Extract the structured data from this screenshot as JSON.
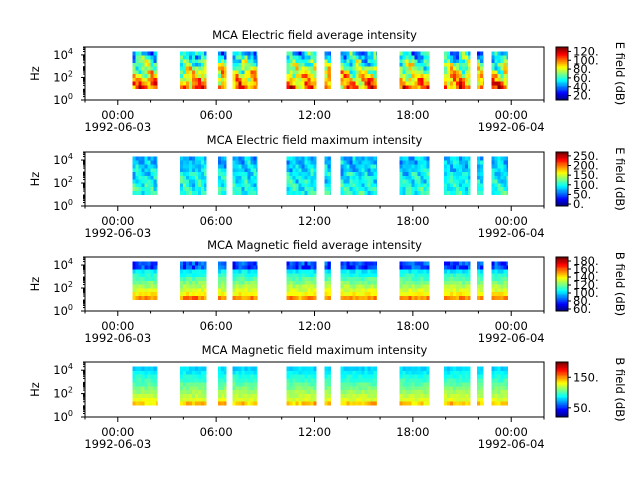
{
  "chart_data": [
    {
      "type": "heatmap",
      "title": "MCA  Electric field average intensity",
      "ylabel": "Hz",
      "colorbar_label": "E field (dB)",
      "colorbar_ticks": [
        "20.",
        "40.",
        "60.",
        "80.",
        "100.",
        "120."
      ],
      "colorbar_range": [
        10,
        130
      ],
      "y_ticks": [
        {
          "base": "10",
          "exp": "0"
        },
        {
          "base": "10",
          "exp": "2"
        },
        {
          "base": "10",
          "exp": "4"
        }
      ],
      "x_ticks": [
        {
          "time": "00:00",
          "date": "1992-06-03"
        },
        {
          "time": "06:00",
          "date": ""
        },
        {
          "time": "12:00",
          "date": ""
        },
        {
          "time": "18:00",
          "date": ""
        },
        {
          "time": "00:00",
          "date": "1992-06-04"
        }
      ],
      "x_range_hours": [
        -2,
        26
      ],
      "y_range_log10": [
        0,
        4.7
      ],
      "data_coverage_log10_hz": [
        1,
        4.3
      ],
      "profile": "e_avg"
    },
    {
      "type": "heatmap",
      "title": "MCA  Electric field maximum intensity",
      "ylabel": "Hz",
      "colorbar_label": "E field (dB)",
      "colorbar_ticks": [
        "0.",
        "50.",
        "100.",
        "150.",
        "200.",
        "250."
      ],
      "colorbar_range": [
        -10,
        270
      ],
      "y_ticks": [
        {
          "base": "10",
          "exp": "0"
        },
        {
          "base": "10",
          "exp": "2"
        },
        {
          "base": "10",
          "exp": "4"
        }
      ],
      "x_ticks": [
        {
          "time": "00:00",
          "date": "1992-06-03"
        },
        {
          "time": "06:00",
          "date": ""
        },
        {
          "time": "12:00",
          "date": ""
        },
        {
          "time": "18:00",
          "date": ""
        },
        {
          "time": "00:00",
          "date": "1992-06-04"
        }
      ],
      "x_range_hours": [
        -2,
        26
      ],
      "y_range_log10": [
        0,
        4.7
      ],
      "data_coverage_log10_hz": [
        1,
        4.3
      ],
      "profile": "e_max"
    },
    {
      "type": "heatmap",
      "title": "MCA  Magnetic field average intensity",
      "ylabel": "Hz",
      "colorbar_label": "B field (dB)",
      "colorbar_ticks": [
        "60.",
        "80.",
        "100.",
        "120.",
        "140.",
        "160.",
        "180."
      ],
      "colorbar_range": [
        55,
        190
      ],
      "y_ticks": [
        {
          "base": "10",
          "exp": "0"
        },
        {
          "base": "10",
          "exp": "2"
        },
        {
          "base": "10",
          "exp": "4"
        }
      ],
      "x_ticks": [
        {
          "time": "00:00",
          "date": "1992-06-03"
        },
        {
          "time": "06:00",
          "date": ""
        },
        {
          "time": "12:00",
          "date": ""
        },
        {
          "time": "18:00",
          "date": ""
        },
        {
          "time": "00:00",
          "date": "1992-06-04"
        }
      ],
      "x_range_hours": [
        -2,
        26
      ],
      "y_range_log10": [
        0,
        4.7
      ],
      "data_coverage_log10_hz": [
        1,
        4.3
      ],
      "profile": "b_avg"
    },
    {
      "type": "heatmap",
      "title": "MCA  Magnetic field maximum intensity",
      "ylabel": "Hz",
      "colorbar_label": "B field (dB)",
      "colorbar_ticks": [
        "50.",
        "150."
      ],
      "colorbar_range": [
        20,
        200
      ],
      "y_ticks": [
        {
          "base": "10",
          "exp": "0"
        },
        {
          "base": "10",
          "exp": "2"
        },
        {
          "base": "10",
          "exp": "4"
        }
      ],
      "x_ticks": [
        {
          "time": "00:00",
          "date": "1992-06-03"
        },
        {
          "time": "06:00",
          "date": ""
        },
        {
          "time": "12:00",
          "date": ""
        },
        {
          "time": "18:00",
          "date": ""
        },
        {
          "time": "00:00",
          "date": "1992-06-04"
        }
      ],
      "x_range_hours": [
        -2,
        26
      ],
      "y_range_log10": [
        0,
        4.7
      ],
      "data_coverage_log10_hz": [
        1,
        4.3
      ],
      "profile": "b_max"
    }
  ],
  "data_intervals_hours": [
    [
      0.9,
      2.4
    ],
    [
      3.8,
      5.4
    ],
    [
      6.1,
      6.6
    ],
    [
      7.0,
      8.5
    ],
    [
      10.3,
      12.1
    ],
    [
      12.6,
      13.0
    ],
    [
      13.6,
      15.8
    ],
    [
      17.2,
      19.0
    ],
    [
      19.9,
      21.5
    ],
    [
      21.9,
      22.3
    ],
    [
      22.8,
      23.8
    ]
  ]
}
